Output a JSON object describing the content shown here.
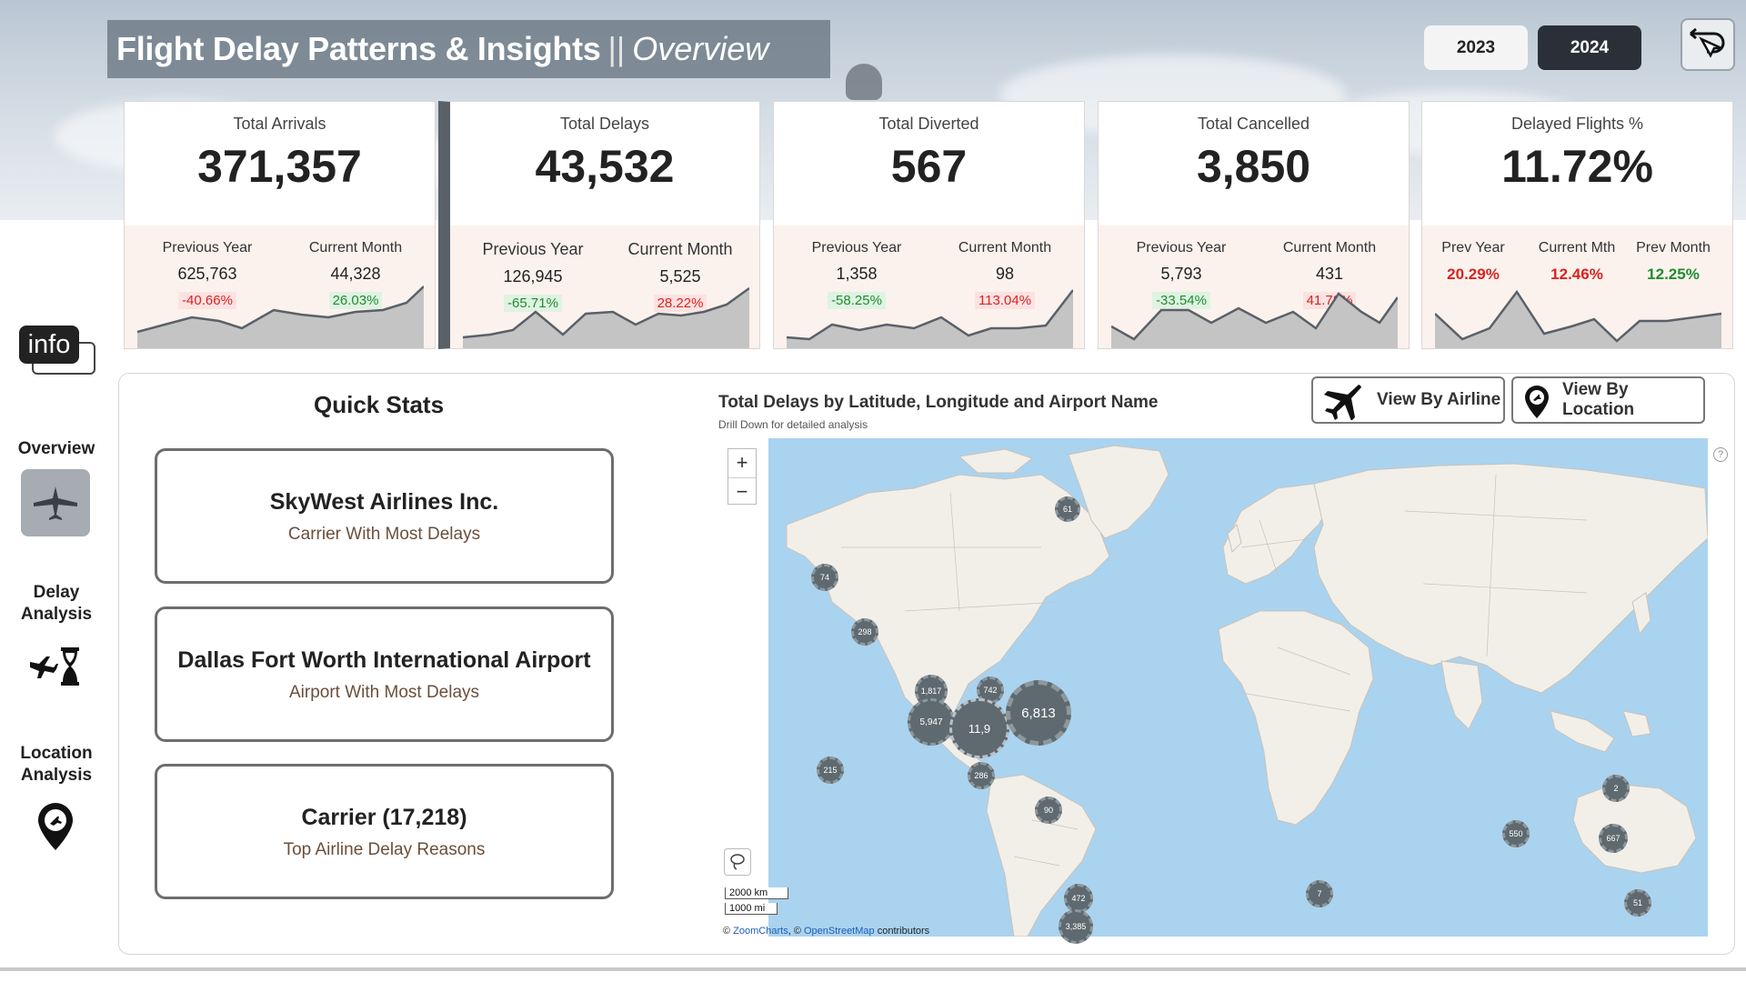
{
  "header": {
    "title": "Flight Delay Patterns & Insights",
    "separator": "||",
    "subtitle": "Overview"
  },
  "years": [
    {
      "label": "2023",
      "selected": false
    },
    {
      "label": "2024",
      "selected": true
    }
  ],
  "kpis": [
    {
      "title": "Total Arrivals",
      "value": "371,357",
      "prev_label": "Previous Year",
      "prev_value": "625,763",
      "prev_pct": "-40.66%",
      "cur_label": "Current Month",
      "cur_value": "44,328",
      "cur_pct": "26.03%"
    },
    {
      "title": "Total Delays",
      "value": "43,532",
      "prev_label": "Previous Year",
      "prev_value": "126,945",
      "prev_pct": "-65.71%",
      "cur_label": "Current Month",
      "cur_value": "5,525",
      "cur_pct": "28.22%"
    },
    {
      "title": "Total Diverted",
      "value": "567",
      "prev_label": "Previous Year",
      "prev_value": "1,358",
      "prev_pct": "-58.25%",
      "cur_label": "Current Month",
      "cur_value": "98",
      "cur_pct": "113.04%"
    },
    {
      "title": "Total Cancelled",
      "value": "3,850",
      "prev_label": "Previous Year",
      "prev_value": "5,793",
      "prev_pct": "-33.54%",
      "cur_label": "Current Month",
      "cur_value": "431",
      "cur_pct": "41.78%"
    },
    {
      "title": "Delayed Flights %",
      "value": "11.72%",
      "col1_label": "Prev Year",
      "col1_value": "20.29%",
      "col2_label": "Current Mth",
      "col2_value": "12.46%",
      "col3_label": "Prev Month",
      "col3_value": "12.25%"
    }
  ],
  "nav": {
    "info_label": "info",
    "items": [
      {
        "label": "Overview"
      },
      {
        "label": "Delay Analysis"
      },
      {
        "label": "Location Analysis"
      }
    ]
  },
  "quick_stats": {
    "title": "Quick Stats",
    "cards": [
      {
        "main": "SkyWest Airlines Inc.",
        "sub": "Carrier With Most Delays"
      },
      {
        "main": "Dallas Fort Worth International Airport",
        "sub": "Airport With Most Delays"
      },
      {
        "main": "Carrier (17,218)",
        "sub": "Top Airline Delay Reasons"
      }
    ]
  },
  "map": {
    "title": "Total Delays by Latitude, Longitude and Airport Name",
    "subtitle": "Drill Down for detailed analysis",
    "buttons": {
      "airline": "View By Airline",
      "location": "View By Location"
    },
    "zoom_in": "+",
    "zoom_out": "−",
    "scale_km": "2000 km",
    "scale_mi": "1000 mi",
    "attribution": {
      "prefix": "©",
      "zoomcharts": "ZoomCharts",
      "mid": ", ©",
      "osm": "OpenStreetMap",
      "suffix": "contributors"
    },
    "clusters": [
      {
        "label": "61"
      },
      {
        "label": "74"
      },
      {
        "label": "298"
      },
      {
        "label": "1,817"
      },
      {
        "label": "742"
      },
      {
        "label": "5,947"
      },
      {
        "label": "11,9"
      },
      {
        "label": "6,813"
      },
      {
        "label": "215"
      },
      {
        "label": "286"
      },
      {
        "label": "90"
      },
      {
        "label": "472"
      },
      {
        "label": "3,385"
      },
      {
        "label": "7"
      },
      {
        "label": "2"
      },
      {
        "label": "550"
      },
      {
        "label": "667"
      },
      {
        "label": "51"
      }
    ]
  },
  "colors": {
    "accent_dark": "#2b3038",
    "negative": "#d8231f",
    "positive": "#1f8c2e",
    "ocean": "#aad3f0",
    "land": "#f2efe9"
  }
}
